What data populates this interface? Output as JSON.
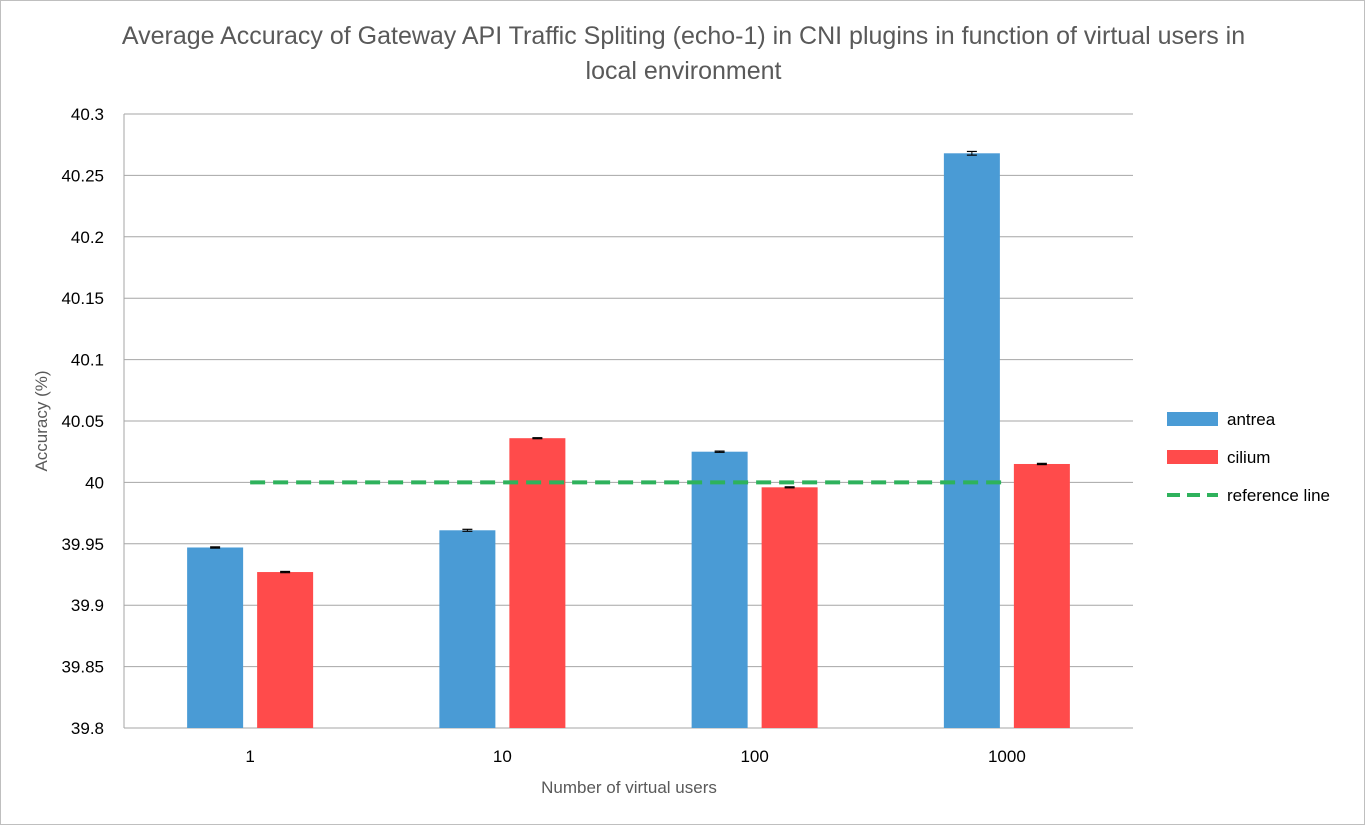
{
  "chart_data": {
    "type": "bar",
    "title": "Average Accuracy of Gateway API Traffic Spliting (echo-1) in CNI plugins in function of virtual users in local environment",
    "xlabel": "Number of virtual users",
    "ylabel": "Accuracy  (%)",
    "categories": [
      "1",
      "10",
      "100",
      "1000"
    ],
    "ylim": [
      39.8,
      40.3
    ],
    "yticks": [
      "39.8",
      "39.85",
      "39.9",
      "39.95",
      "40",
      "40.05",
      "40.1",
      "40.15",
      "40.2",
      "40.25",
      "40.3"
    ],
    "grid": true,
    "legend_position": "right",
    "series": [
      {
        "name": "antrea",
        "color": "#4a9bd5",
        "values": [
          39.947,
          39.961,
          40.025,
          40.268
        ],
        "errors": [
          0.0005,
          0.0008,
          0.0005,
          0.0015
        ]
      },
      {
        "name": "cilium",
        "color": "#ff4b4b",
        "values": [
          39.927,
          40.036,
          39.996,
          40.015
        ],
        "errors": [
          0.0005,
          0.0004,
          0.0004,
          0.0005
        ]
      }
    ],
    "reference_line": {
      "name": "reference line",
      "value": 40.0,
      "color": "#2eb25c"
    }
  }
}
